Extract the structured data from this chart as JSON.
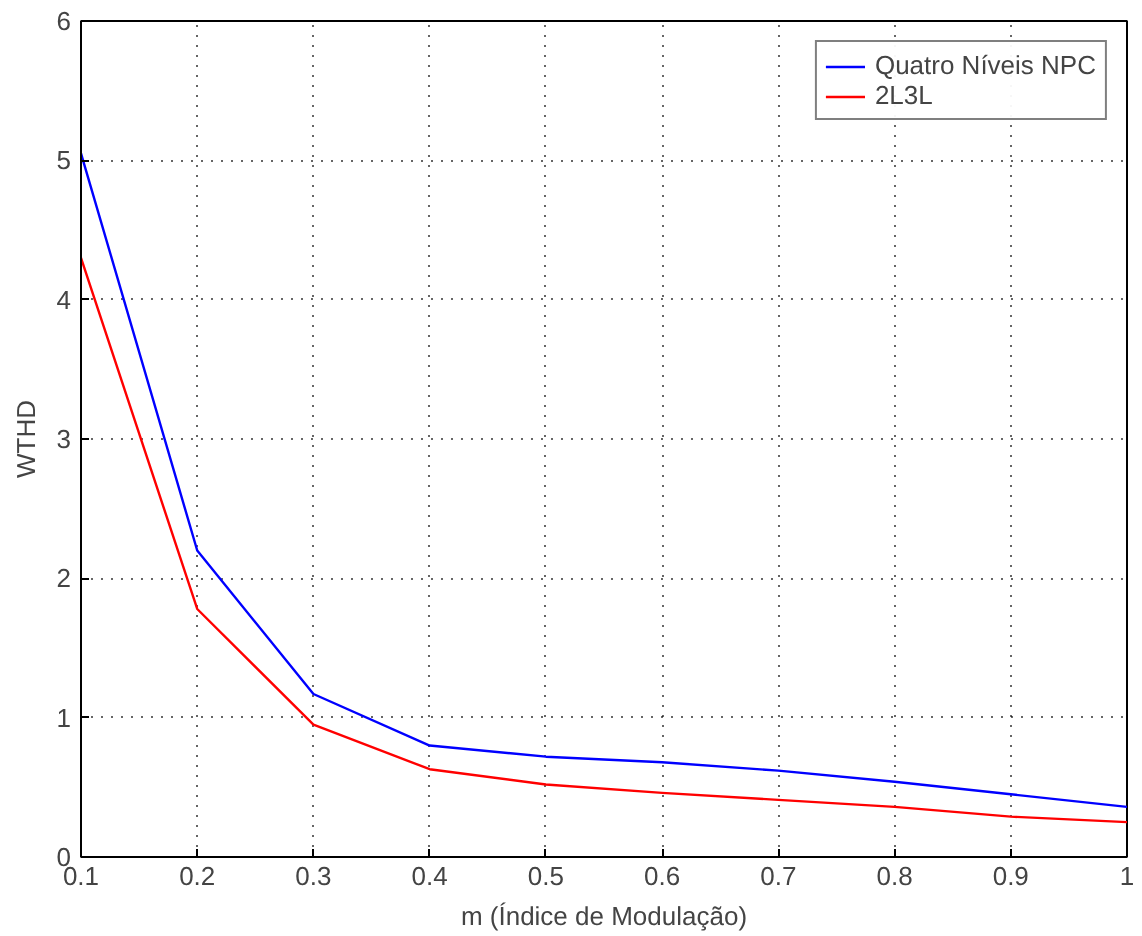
{
  "chart_data": {
    "type": "line",
    "xlabel": "m (Índice de Modulação)",
    "ylabel": "WTHD",
    "x": [
      0.1,
      0.2,
      0.3,
      0.4,
      0.5,
      0.6,
      0.7,
      0.8,
      0.9,
      1
    ],
    "series": [
      {
        "name": "Quatro Níveis NPC",
        "color": "#0000ff",
        "values": [
          5.05,
          2.2,
          1.17,
          0.8,
          0.72,
          0.68,
          0.62,
          0.54,
          0.45,
          0.36
        ]
      },
      {
        "name": "2L3L",
        "color": "#ff0000",
        "values": [
          4.3,
          1.78,
          0.95,
          0.63,
          0.52,
          0.46,
          0.41,
          0.36,
          0.29,
          0.25
        ]
      }
    ],
    "xlim": [
      0.1,
      1
    ],
    "ylim": [
      0,
      6
    ],
    "xticks": [
      0.1,
      0.2,
      0.3,
      0.4,
      0.5,
      0.6,
      0.7,
      0.8,
      0.9,
      1
    ],
    "yticks": [
      0,
      1,
      2,
      3,
      4,
      5,
      6
    ],
    "grid": true,
    "legend": "top right",
    "marker": "none",
    "line_style": "solid"
  }
}
